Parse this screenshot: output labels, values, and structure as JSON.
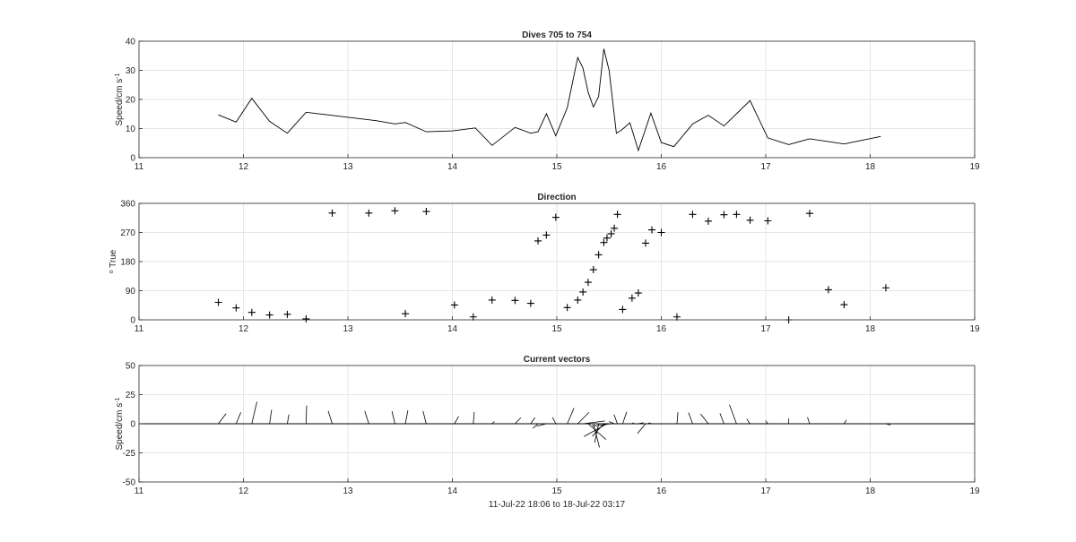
{
  "chart_data": [
    {
      "type": "line",
      "title": "Dives 705 to 754",
      "ylabel": "Speed/cm s",
      "ylabel_sup": "-1",
      "xlim": [
        11,
        19
      ],
      "ylim": [
        0,
        40
      ],
      "xticks": [
        11,
        12,
        13,
        14,
        15,
        16,
        17,
        18,
        19
      ],
      "yticks": [
        0,
        10,
        20,
        30,
        40
      ],
      "grid": true,
      "series": [
        {
          "x": [
            11.76,
            11.93,
            12.08,
            12.25,
            12.42,
            12.6,
            13.27,
            13.45,
            13.55,
            13.75,
            14.0,
            14.22,
            14.38,
            14.6,
            14.75,
            14.82,
            14.9,
            14.99,
            15.1,
            15.2,
            15.25,
            15.3,
            15.35,
            15.4,
            15.45,
            15.5,
            15.57,
            15.62,
            15.7,
            15.78,
            15.9,
            16.0,
            16.12,
            16.3,
            16.45,
            16.6,
            16.85,
            17.02,
            17.22,
            17.42,
            17.75,
            18.1
          ],
          "values": [
            14.7,
            12.2,
            20.4,
            12.5,
            8.4,
            15.6,
            12.7,
            11.6,
            12.1,
            8.9,
            9.2,
            10.2,
            4.2,
            10.4,
            8.4,
            8.9,
            15.1,
            7.5,
            17.1,
            34.4,
            30.8,
            22.4,
            17.4,
            21.0,
            37.4,
            30.0,
            8.4,
            9.5,
            12.0,
            2.5,
            15.3,
            5.2,
            3.8,
            11.6,
            14.6,
            10.9,
            19.6,
            6.8,
            4.5,
            6.5,
            4.7,
            7.3
          ],
          "color": "#000000"
        }
      ]
    },
    {
      "type": "scatter",
      "title": "Direction",
      "ylabel": "True",
      "ylabel_sup": "o",
      "xlim": [
        11,
        19
      ],
      "ylim": [
        0,
        360
      ],
      "xticks": [
        11,
        12,
        13,
        14,
        15,
        16,
        17,
        18,
        19
      ],
      "yticks": [
        0,
        90,
        180,
        270,
        360
      ],
      "grid": true,
      "marker": "+",
      "series": [
        {
          "x": [
            11.76,
            11.93,
            12.08,
            12.25,
            12.42,
            12.6,
            12.85,
            13.2,
            13.45,
            13.55,
            13.75,
            14.02,
            14.2,
            14.38,
            14.6,
            14.75,
            14.82,
            14.9,
            14.99,
            15.1,
            15.2,
            15.25,
            15.3,
            15.35,
            15.4,
            15.45,
            15.48,
            15.52,
            15.55,
            15.58,
            15.63,
            15.72,
            15.78,
            15.85,
            15.91,
            16.0,
            16.15,
            16.3,
            16.45,
            16.6,
            16.72,
            16.85,
            17.02,
            17.22,
            17.42,
            17.6,
            17.75,
            18.15
          ],
          "values": [
            54,
            37,
            23,
            15,
            17,
            3,
            330,
            330,
            337,
            19,
            335,
            46,
            9,
            61,
            60,
            51,
            244,
            262,
            317,
            38,
            61,
            86,
            116,
            155,
            201,
            239,
            253,
            266,
            283,
            326,
            32,
            67,
            83,
            237,
            278,
            270,
            9,
            326,
            305,
            325,
            326,
            308,
            306,
            0,
            329,
            93,
            47,
            99
          ],
          "color": "#000000"
        }
      ]
    },
    {
      "type": "line",
      "title": "Current vectors",
      "subtype": "stick-vectors",
      "ylabel": "Speed/cm s",
      "ylabel_sup": "-1",
      "xlabel": "11-Jul-22 18:06 to 18-Jul-22 03:17",
      "xlim": [
        11,
        19
      ],
      "ylim": [
        -50,
        50
      ],
      "xticks": [
        11,
        12,
        13,
        14,
        15,
        16,
        17,
        18,
        19
      ],
      "yticks": [
        -50,
        -25,
        0,
        25,
        50
      ],
      "grid": true,
      "baseline": 0,
      "series": [
        {
          "x": [
            11.76,
            11.93,
            12.08,
            12.25,
            12.42,
            12.6,
            12.85,
            13.2,
            13.45,
            13.55,
            13.75,
            14.02,
            14.2,
            14.38,
            14.6,
            14.75,
            14.82,
            14.9,
            14.99,
            15.1,
            15.2,
            15.25,
            15.3,
            15.35,
            15.4,
            15.45,
            15.48,
            15.52,
            15.55,
            15.58,
            15.63,
            15.72,
            15.78,
            15.85,
            15.91,
            16.0,
            16.15,
            16.3,
            16.45,
            16.6,
            16.72,
            16.85,
            17.02,
            17.22,
            17.42,
            17.6,
            17.75,
            18.15
          ],
          "speed": [
            14.7,
            12.2,
            20.4,
            12.5,
            8.4,
            15.6,
            12.7,
            12.7,
            11.6,
            12.1,
            12.0,
            9.2,
            10.2,
            4.2,
            10.4,
            8.4,
            8.9,
            15.1,
            7.5,
            17.1,
            20.0,
            34.4,
            30.8,
            22.4,
            17.4,
            21.0,
            37.4,
            30.0,
            8.4,
            9.5,
            12.0,
            2.5,
            8.0,
            15.3,
            5.2,
            3.8,
            10.0,
            11.6,
            14.6,
            10.9,
            19.6,
            6.8,
            4.5,
            4.5,
            6.5,
            3.0,
            4.7,
            7.3
          ],
          "direction": [
            54,
            37,
            23,
            15,
            17,
            3,
            330,
            330,
            337,
            19,
            335,
            46,
            9,
            61,
            60,
            51,
            244,
            262,
            317,
            38,
            61,
            86,
            116,
            155,
            201,
            239,
            253,
            266,
            283,
            326,
            32,
            67,
            83,
            237,
            278,
            270,
            9,
            326,
            305,
            325,
            326,
            308,
            306,
            0,
            329,
            93,
            47,
            99
          ],
          "color": "#000000"
        }
      ]
    }
  ]
}
